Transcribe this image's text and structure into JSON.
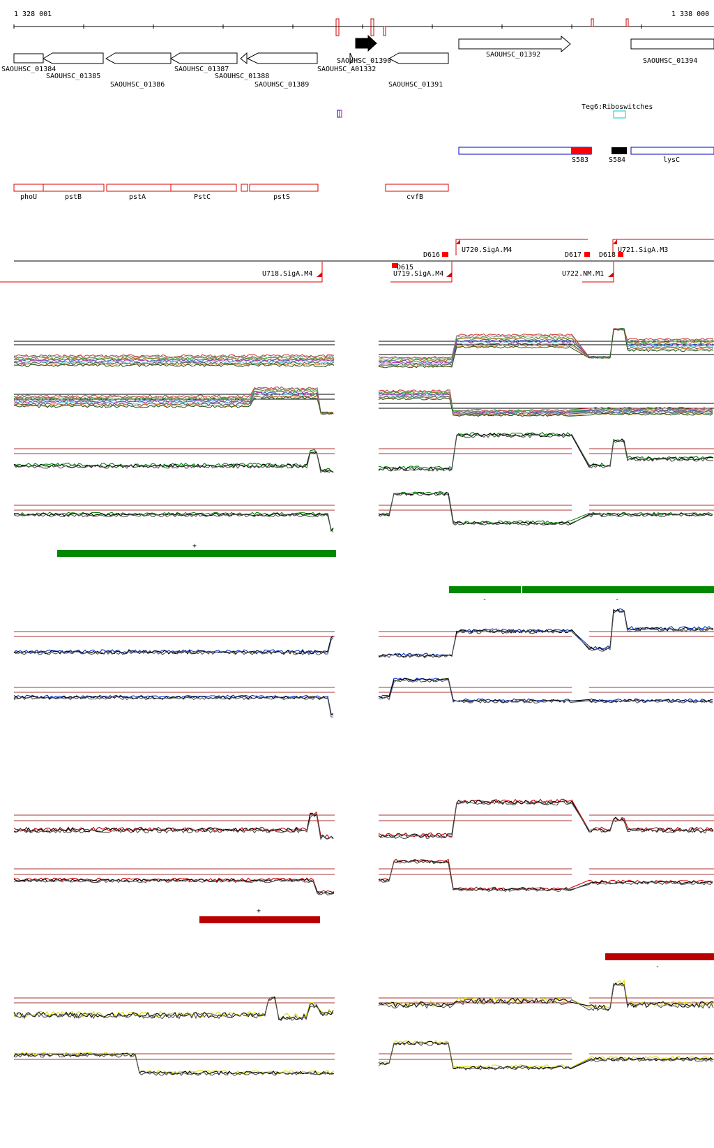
{
  "coords": {
    "start": "1 328 001",
    "end": "1 338 000"
  },
  "genes": [
    {
      "label": "SAOUHSC_01384",
      "dir": "+",
      "x1": 20,
      "x2": 62,
      "row": 0
    },
    {
      "label": "SAOUHSC_01385",
      "dir": "-",
      "x1": 62,
      "x2": 148,
      "row": 1
    },
    {
      "label": "SAOUHSC_01386",
      "dir": "-",
      "x1": 152,
      "x2": 245,
      "row": 2
    },
    {
      "label": "SAOUHSC_01387",
      "dir": "-",
      "x1": 245,
      "x2": 330,
      "row": 0
    },
    {
      "label": "SAOUHSC_01388",
      "dir": "-",
      "x1": 345,
      "x2": 355,
      "row": 1
    },
    {
      "label": "SAOUHSC_01389",
      "dir": "-",
      "x1": 355,
      "x2": 455,
      "row": 2
    },
    {
      "label": "SAOUHSC_A01332",
      "dir": "+",
      "x1": 492,
      "x2": 502,
      "row": 0
    },
    {
      "label": "SAOUHSC_01390",
      "dir": "+",
      "x1": 510,
      "x2": 538,
      "row": "top"
    },
    {
      "label": "SAOUHSC_01391",
      "dir": "-",
      "x1": 558,
      "x2": 643,
      "row": 2
    },
    {
      "label": "SAOUHSC_01392",
      "dir": "+",
      "x1": 658,
      "x2": 818,
      "row": 1
    },
    {
      "label": "SAOUHSC_01394",
      "dir": "+",
      "x1": 905,
      "x2": 1024,
      "row": 0
    }
  ],
  "riboswitch_label": "Teg6:Riboswitches",
  "srna": [
    {
      "label": "S583"
    },
    {
      "label": "S584"
    },
    {
      "label": "lysC"
    }
  ],
  "operons": [
    "phoU",
    "pstB",
    "pstA",
    "PstC",
    "pstS",
    "cvfB"
  ],
  "tss": {
    "forward": [
      "D616",
      "U720.SigA.M4",
      "D617",
      "D618",
      "U721.SigA.M3"
    ],
    "reverse": [
      "U718.SigA.M4",
      "D615",
      "U719.SigA.M4",
      "U722.NM.M1"
    ]
  },
  "strand_marks": {
    "green_plus": "+",
    "green_minus": [
      "-",
      "-"
    ],
    "red_plus": "+",
    "red_minus": "-"
  },
  "colors": {
    "gene_outline": "#000000",
    "operon": "#dd0000",
    "srna": "#0000bb",
    "srna_fill": "#ff0000",
    "riboswitch": "#00cccc",
    "green": "#008800",
    "blue": "#0033cc",
    "red": "#cc0000",
    "yellow": "#dddd00",
    "thresh": "#aa3333"
  }
}
